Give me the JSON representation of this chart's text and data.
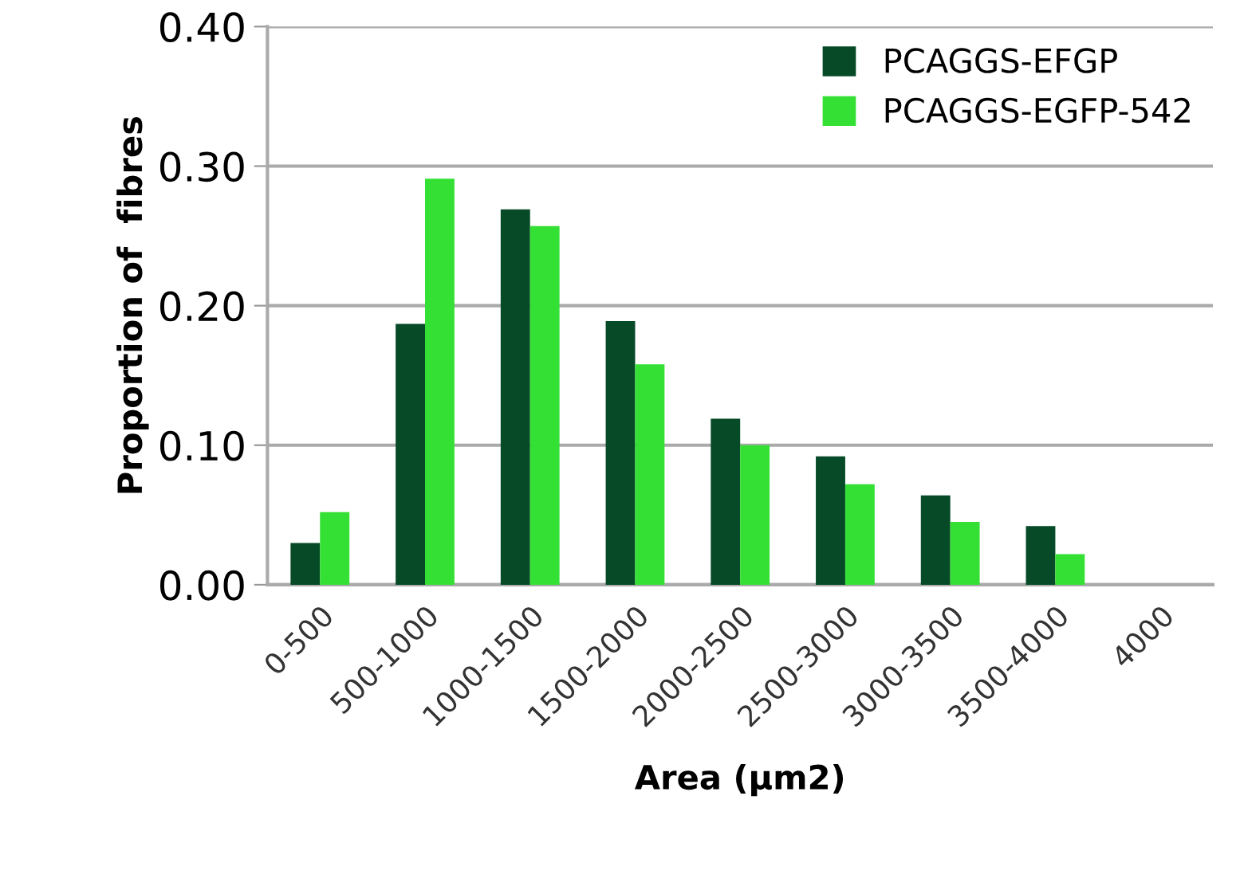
{
  "chart_data": {
    "type": "bar",
    "xlabel": "Area (µm2)",
    "ylabel": "Proportion of  fibres",
    "categories": [
      "0-500",
      "500-1000",
      "1000-1500",
      "1500-2000",
      "2000-2500",
      "2500-3000",
      "3000-3500",
      "3500-4000",
      "4000"
    ],
    "series": [
      {
        "name": "PCAGGS-EFGP",
        "color": "#064a28",
        "values": [
          0.03,
          0.187,
          0.269,
          0.189,
          0.119,
          0.092,
          0.064,
          0.042,
          0
        ]
      },
      {
        "name": "PCAGGS-EGFP-542",
        "color": "#35e035",
        "values": [
          0.052,
          0.291,
          0.257,
          0.158,
          0.1,
          0.072,
          0.045,
          0.022,
          0
        ]
      }
    ],
    "ylim": [
      0,
      0.4
    ],
    "yticks": [
      {
        "value": 0,
        "label": "0.00"
      },
      {
        "value": 0.1,
        "label": "0.10"
      },
      {
        "value": 0.2,
        "label": "0.20"
      },
      {
        "value": 0.3,
        "label": "0.30"
      },
      {
        "value": 0.4,
        "label": "0.40"
      }
    ],
    "grid": "y",
    "legend": "top right"
  }
}
